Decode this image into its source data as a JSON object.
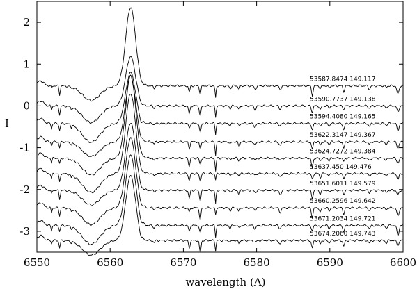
{
  "chart_data": {
    "type": "line",
    "title": "",
    "xlabel": "wavelength (A)",
    "ylabel": "I",
    "xlim": [
      6550,
      6600
    ],
    "ylim": [
      -3.5,
      2.5
    ],
    "x_ticks": [
      6550,
      6560,
      6570,
      6580,
      6590,
      6600
    ],
    "y_ticks": [
      -3,
      -2,
      -1,
      0,
      1,
      2
    ],
    "grid": false,
    "legend": "none",
    "line_color": "#000000",
    "continuum_levels": [
      0.48,
      0.0,
      -0.42,
      -0.86,
      -1.25,
      -1.62,
      -2.02,
      -2.44,
      -2.86,
      -3.22
    ],
    "peak_heights": [
      1.88,
      1.18,
      1.22,
      1.58,
      1.98,
      1.92,
      1.62,
      1.68,
      1.68,
      1.55
    ],
    "series": [
      {
        "label": "53587.8474  149.117"
      },
      {
        "label": "53590.7737  149.138"
      },
      {
        "label": "53594.4080  149.165"
      },
      {
        "label": "53622.3147  149.367"
      },
      {
        "label": "53624.7272  149.384"
      },
      {
        "label": "53637.450    149.476"
      },
      {
        "label": "53651.6011  149.579"
      },
      {
        "label": "53660.2596  149.642"
      },
      {
        "label": "53671.2034  149.721"
      },
      {
        "label": "53674.2060  149.743"
      }
    ]
  }
}
